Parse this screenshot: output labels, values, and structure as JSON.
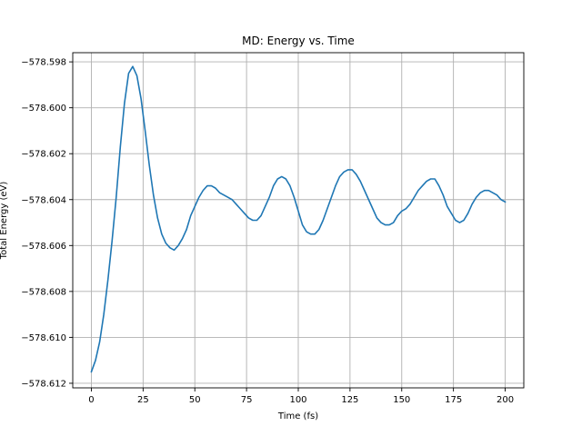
{
  "chart_data": {
    "type": "line",
    "title": "MD: Energy vs. Time",
    "xlabel": "Time (fs)",
    "ylabel": "Total Energy (eV)",
    "xlim": [
      -9,
      209
    ],
    "ylim": [
      -578.6122,
      -578.5976
    ],
    "xticks": [
      0,
      25,
      50,
      75,
      100,
      125,
      150,
      175,
      200
    ],
    "yticks": [
      -578.612,
      -578.61,
      -578.608,
      -578.606,
      -578.604,
      -578.602,
      -578.6,
      -578.598
    ],
    "xtick_labels": [
      "0",
      "25",
      "50",
      "75",
      "100",
      "125",
      "150",
      "175",
      "200"
    ],
    "ytick_labels": [
      "−578.612",
      "−578.610",
      "−578.608",
      "−578.606",
      "−578.604",
      "−578.602",
      "−578.600",
      "−578.598"
    ],
    "grid": true,
    "line_color": "#1f77b4",
    "series": [
      {
        "x": [
          0,
          2,
          4,
          6,
          8,
          10,
          12,
          14,
          16,
          18,
          20,
          22,
          24,
          26,
          28,
          30,
          32,
          34,
          36,
          38,
          40,
          42,
          44,
          46,
          48,
          50,
          52,
          54,
          56,
          58,
          60,
          62,
          64,
          66,
          68,
          70,
          72,
          74,
          76,
          78,
          80,
          82,
          84,
          86,
          88,
          90,
          92,
          94,
          96,
          98,
          100,
          102,
          104,
          106,
          108,
          110,
          112,
          114,
          116,
          118,
          120,
          122,
          124,
          126,
          128,
          130,
          132,
          134,
          136,
          138,
          140,
          142,
          144,
          146,
          148,
          150,
          152,
          154,
          156,
          158,
          160,
          162,
          164,
          166,
          168,
          170,
          172,
          174,
          176,
          178,
          180,
          182,
          184,
          186,
          188,
          190,
          192,
          194,
          196,
          198,
          200
        ],
        "y": [
          -578.6115,
          -578.611,
          -578.6102,
          -578.609,
          -578.6075,
          -578.6058,
          -578.6039,
          -578.6017,
          -578.5998,
          -578.5985,
          -578.5982,
          -578.5986,
          -578.5996,
          -578.601,
          -578.6025,
          -578.6038,
          -578.6048,
          -578.6055,
          -578.6059,
          -578.6061,
          -578.6062,
          -578.606,
          -578.6057,
          -578.6053,
          -578.6047,
          -578.6043,
          -578.6039,
          -578.6036,
          -578.6034,
          -578.6034,
          -578.6035,
          -578.6037,
          -578.6038,
          -578.6039,
          -578.604,
          -578.6042,
          -578.6044,
          -578.6046,
          -578.6048,
          -578.6049,
          -578.6049,
          -578.6047,
          -578.6043,
          -578.6039,
          -578.6034,
          -578.6031,
          -578.603,
          -578.6031,
          -578.6034,
          -578.6039,
          -578.6045,
          -578.6051,
          -578.6054,
          -578.6055,
          -578.6055,
          -578.6053,
          -578.6049,
          -578.6044,
          -578.6039,
          -578.6034,
          -578.603,
          -578.6028,
          -578.6027,
          -578.6027,
          -578.6029,
          -578.6032,
          -578.6036,
          -578.604,
          -578.6044,
          -578.6048,
          -578.605,
          -578.6051,
          -578.6051,
          -578.605,
          -578.6047,
          -578.6045,
          -578.6044,
          -578.6042,
          -578.6039,
          -578.6036,
          -578.6034,
          -578.6032,
          -578.6031,
          -578.6031,
          -578.6034,
          -578.6038,
          -578.6043,
          -578.6046,
          -578.6049,
          -578.605,
          -578.6049,
          -578.6046,
          -578.6042,
          -578.6039,
          -578.6037,
          -578.6036,
          -578.6036,
          -578.6037,
          -578.6038,
          -578.604,
          -578.6041
        ]
      }
    ]
  }
}
